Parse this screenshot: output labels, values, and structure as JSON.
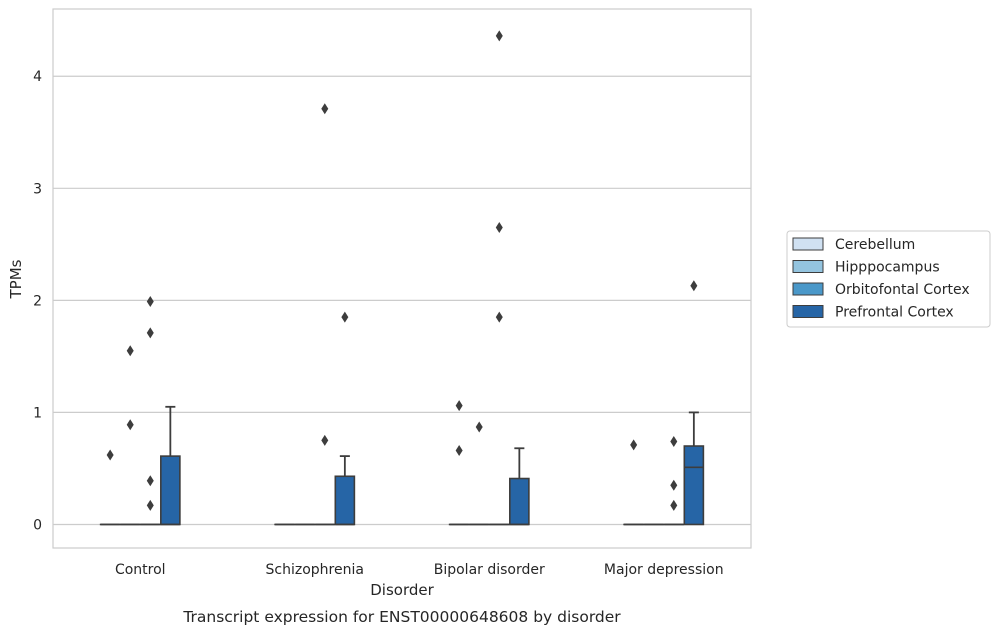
{
  "caption": "Transcript expression for ENST00000648608 by disorder",
  "chart_data": {
    "type": "box",
    "xlabel": "Disorder",
    "ylabel": "TPMs",
    "ylim": [
      -0.21,
      4.6
    ],
    "yticks": [
      0,
      1,
      2,
      3,
      4
    ],
    "grid": true,
    "legend_position": "right",
    "categories": [
      "Control",
      "Schizophrenia",
      "Bipolar disorder",
      "Major depression"
    ],
    "series": [
      {
        "name": "Cerebellum",
        "color": "#d0e1f2",
        "boxes": [
          {
            "q1": 0,
            "median": 0,
            "q3": 0,
            "whislo": 0,
            "whishi": 0,
            "fliers": [
              0.62
            ]
          },
          {
            "q1": 0,
            "median": 0,
            "q3": 0,
            "whislo": 0,
            "whishi": 0,
            "fliers": []
          },
          {
            "q1": 0,
            "median": 0,
            "q3": 0,
            "whislo": 0,
            "whishi": 0,
            "fliers": [
              0.66,
              1.06
            ]
          },
          {
            "q1": 0,
            "median": 0,
            "q3": 0,
            "whislo": 0,
            "whishi": 0,
            "fliers": [
              0.71
            ]
          }
        ]
      },
      {
        "name": "Hipppocampus",
        "color": "#94c4df",
        "boxes": [
          {
            "q1": 0,
            "median": 0,
            "q3": 0,
            "whislo": 0,
            "whishi": 0,
            "fliers": [
              0.89,
              1.55
            ]
          },
          {
            "q1": 0,
            "median": 0,
            "q3": 0,
            "whislo": 0,
            "whishi": 0,
            "fliers": []
          },
          {
            "q1": 0,
            "median": 0,
            "q3": 0,
            "whislo": 0,
            "whishi": 0,
            "fliers": [
              0.87
            ]
          },
          {
            "q1": 0,
            "median": 0,
            "q3": 0,
            "whislo": 0,
            "whishi": 0,
            "fliers": []
          }
        ]
      },
      {
        "name": "Orbitofontal Cortex",
        "color": "#4a98c9",
        "boxes": [
          {
            "q1": 0,
            "median": 0,
            "q3": 0,
            "whislo": 0,
            "whishi": 0,
            "fliers": [
              0.17,
              0.39,
              1.71,
              1.99
            ]
          },
          {
            "q1": 0,
            "median": 0,
            "q3": 0,
            "whislo": 0,
            "whishi": 0,
            "fliers": [
              0.75,
              3.71
            ]
          },
          {
            "q1": 0,
            "median": 0,
            "q3": 0,
            "whislo": 0,
            "whishi": 0,
            "fliers": [
              1.85,
              2.65,
              4.36
            ]
          },
          {
            "q1": 0,
            "median": 0,
            "q3": 0,
            "whislo": 0,
            "whishi": 0,
            "fliers": [
              0.17,
              0.35,
              0.74
            ]
          }
        ]
      },
      {
        "name": "Prefrontal Cortex",
        "color": "#2665a6",
        "boxes": [
          {
            "q1": 0,
            "median": 0,
            "q3": 0.61,
            "whislo": 0,
            "whishi": 1.05,
            "fliers": []
          },
          {
            "q1": 0,
            "median": 0,
            "q3": 0.43,
            "whislo": 0,
            "whishi": 0.61,
            "fliers": [
              1.85
            ]
          },
          {
            "q1": 0,
            "median": 0,
            "q3": 0.41,
            "whislo": 0,
            "whishi": 0.68,
            "fliers": []
          },
          {
            "q1": 0,
            "median": 0.51,
            "q3": 0.7,
            "whislo": 0,
            "whishi": 1.0,
            "fliers": [
              2.13
            ]
          }
        ]
      }
    ]
  }
}
